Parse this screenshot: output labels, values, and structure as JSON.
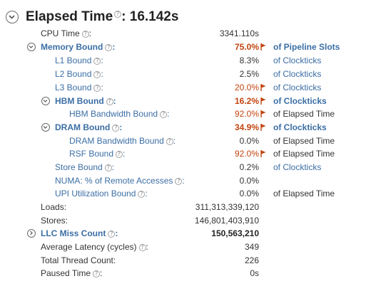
{
  "header": {
    "title": "Elapsed Time",
    "value": ": 16.142s"
  },
  "metrics": {
    "cpu_time": {
      "label": "CPU Time",
      "value": "3341.110s"
    },
    "memory_bound": {
      "label": "Memory Bound",
      "value": "75.0%",
      "unit": "of Pipeline Slots"
    },
    "l1_bound": {
      "label": "L1 Bound",
      "value": "8.3%",
      "unit": "of Clockticks"
    },
    "l2_bound": {
      "label": "L2 Bound",
      "value": "2.5%",
      "unit": "of Clockticks"
    },
    "l3_bound": {
      "label": "L3 Bound",
      "value": "20.0%",
      "unit": "of Clockticks"
    },
    "hbm_bound": {
      "label": "HBM Bound",
      "value": "16.2%",
      "unit": "of Clockticks"
    },
    "hbm_bandwidth_bound": {
      "label": "HBM Bandwidth Bound",
      "value": "92.0%",
      "unit": "of Elapsed Time"
    },
    "dram_bound": {
      "label": "DRAM Bound",
      "value": "34.9%",
      "unit": "of Clockticks"
    },
    "dram_bandwidth_bound": {
      "label": "DRAM Bandwidth Bound",
      "value": "0.0%",
      "unit": "of Elapsed Time"
    },
    "rsf_bound": {
      "label": "RSF Bound",
      "value": "92.0%",
      "unit": "of Elapsed Time"
    },
    "store_bound": {
      "label": "Store Bound",
      "value": "0.2%",
      "unit": "of Clockticks"
    },
    "numa_remote": {
      "label": "NUMA: % of Remote Accesses",
      "value": "0.0%"
    },
    "upi_utilization_bound": {
      "label": "UPI Utilization Bound",
      "value": "0.0%",
      "unit": "of Elapsed Time"
    },
    "loads": {
      "label": "Loads:",
      "value": "311,313,339,120"
    },
    "stores": {
      "label": "Stores:",
      "value": "146,801,403,910"
    },
    "llc_miss_count": {
      "label": "LLC Miss Count",
      "value": "150,563,210"
    },
    "average_latency": {
      "label": "Average Latency (cycles)",
      "value": "349"
    },
    "total_thread_count": {
      "label": "Total Thread Count:",
      "value": "226"
    },
    "paused_time": {
      "label": "Paused Time",
      "value": "0s"
    }
  },
  "colors": {
    "link_blue": "#3b6ea5",
    "alert_red": "#c1440e",
    "text": "#333333"
  },
  "icons": {
    "expand": "chevron-down-circle-icon",
    "collapsed": "chevron-right-circle-icon",
    "help": "help-icon",
    "flag": "flag-icon"
  }
}
